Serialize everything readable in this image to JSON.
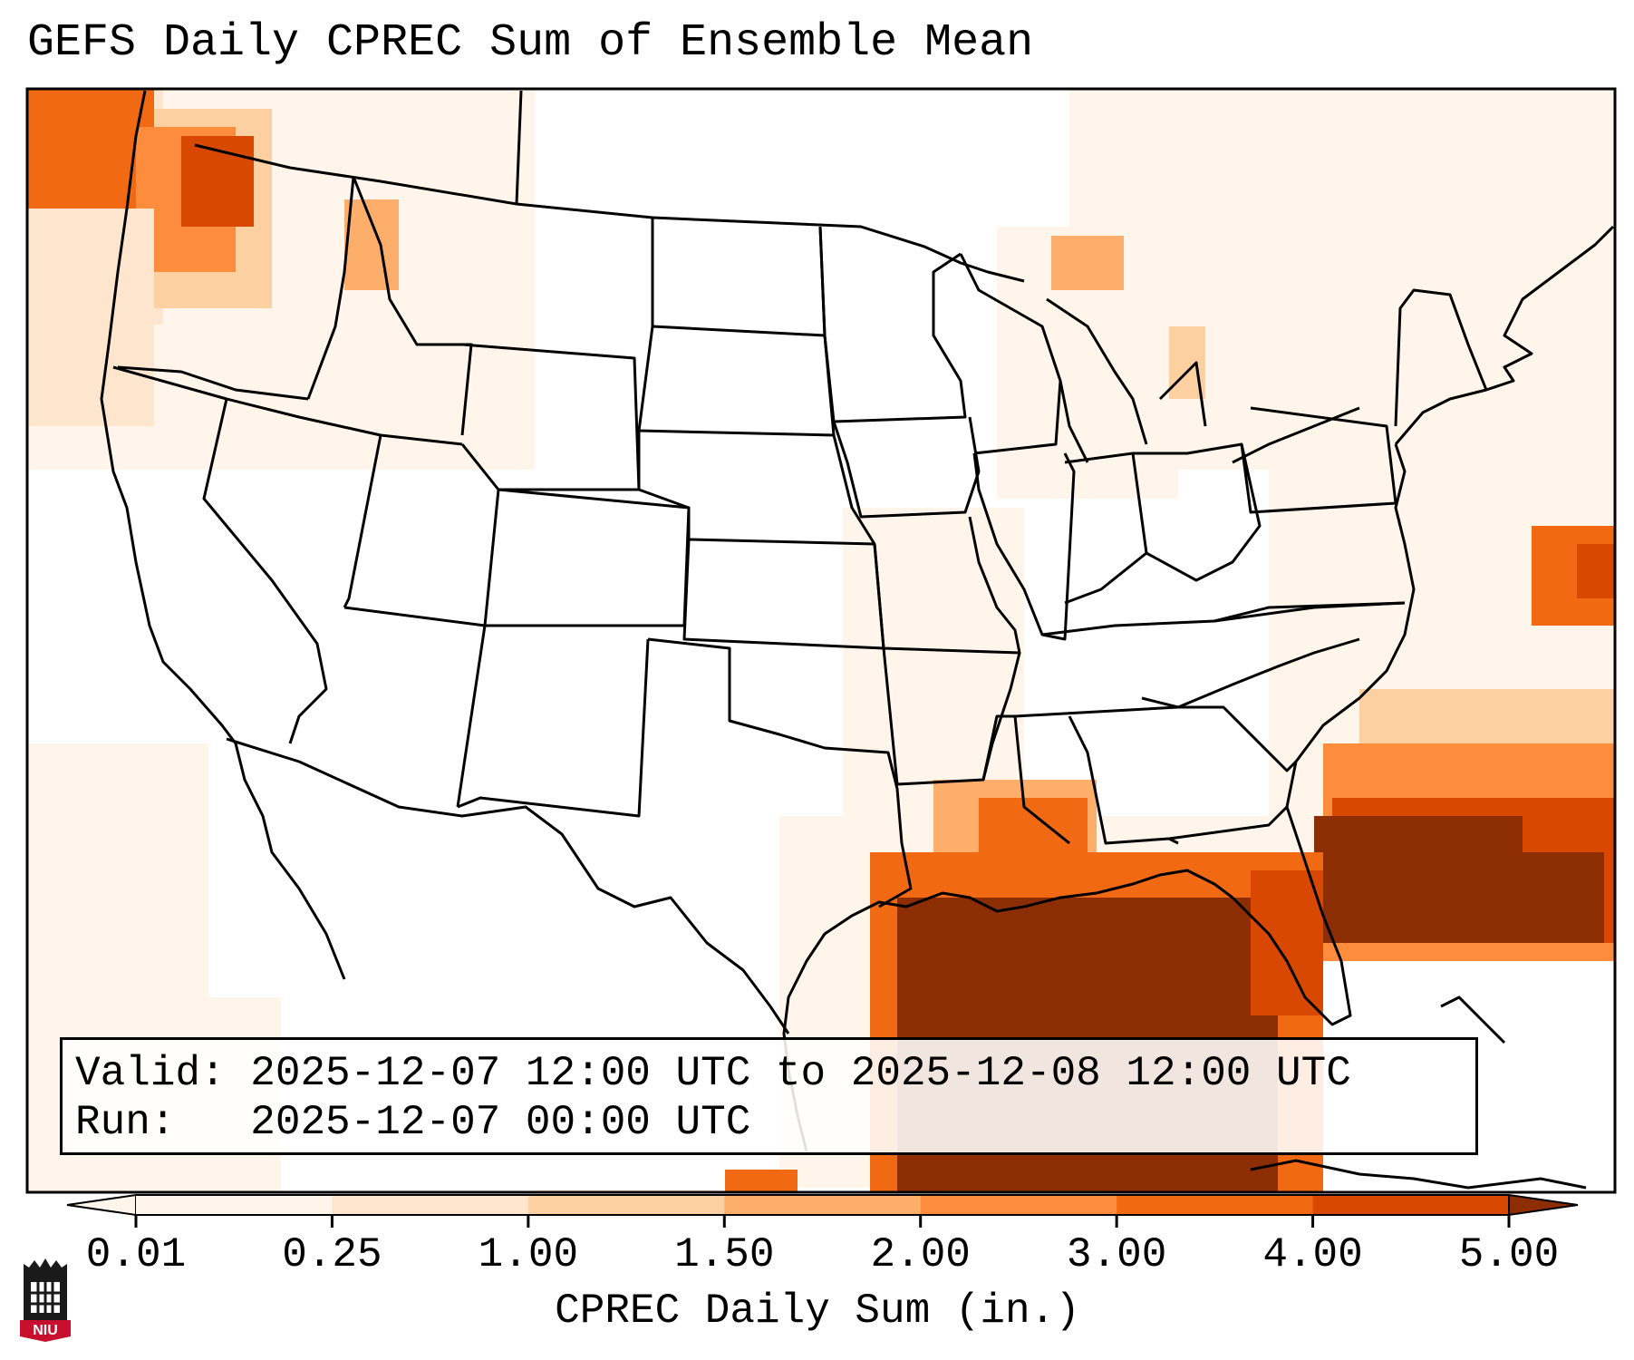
{
  "title": "GEFS Daily CPREC Sum of Ensemble Mean",
  "info": {
    "valid_line": "Valid: 2025-12-07 12:00 UTC to 2025-12-08 12:00 UTC",
    "run_line": "Run:   2025-12-07 00:00 UTC"
  },
  "colorbar": {
    "label": "CPREC Daily Sum (in.)",
    "ticks": [
      "0.01",
      "0.25",
      "1.00",
      "1.50",
      "2.00",
      "3.00",
      "4.00",
      "5.00"
    ],
    "colors": [
      "#fff5eb",
      "#fee6ce",
      "#fdd0a2",
      "#fdae6b",
      "#fd8d3c",
      "#f16913",
      "#d94801",
      "#8c2d04"
    ],
    "extend": "both"
  },
  "logo": {
    "text": "NIU",
    "colors": {
      "red": "#c8102e",
      "black": "#1a1a1a"
    }
  },
  "map_colors": {
    "land_border": "#000000",
    "light": "#fff5eb",
    "l2": "#fee6ce",
    "l3": "#fdd0a2",
    "l4": "#fdae6b",
    "l5": "#fd8d3c",
    "l6": "#f16913",
    "l7": "#d94801",
    "l8": "#8c2d04"
  }
}
